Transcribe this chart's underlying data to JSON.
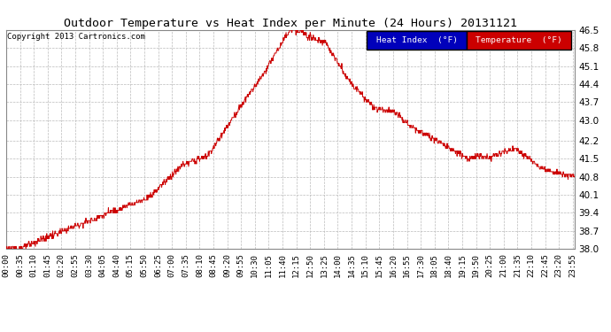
{
  "title": "Outdoor Temperature vs Heat Index per Minute (24 Hours) 20131121",
  "copyright": "Copyright 2013 Cartronics.com",
  "ylim": [
    38.0,
    46.5
  ],
  "yticks": [
    38.0,
    38.7,
    39.4,
    40.1,
    40.8,
    41.5,
    42.2,
    43.0,
    43.7,
    44.4,
    45.1,
    45.8,
    46.5
  ],
  "line_color": "#cc0000",
  "bg_color": "#ffffff",
  "grid_color": "#bbbbbb",
  "legend_heat_bg": "#0000bb",
  "legend_temp_bg": "#cc0000",
  "legend_heat_label": "Heat Index  (°F)",
  "legend_temp_label": "Temperature  (°F)",
  "title_fontsize": 9.5,
  "copyright_fontsize": 6.5,
  "tick_fontsize": 6.5,
  "ytick_fontsize": 7.5,
  "figsize": [
    6.9,
    3.75
  ],
  "dpi": 100
}
